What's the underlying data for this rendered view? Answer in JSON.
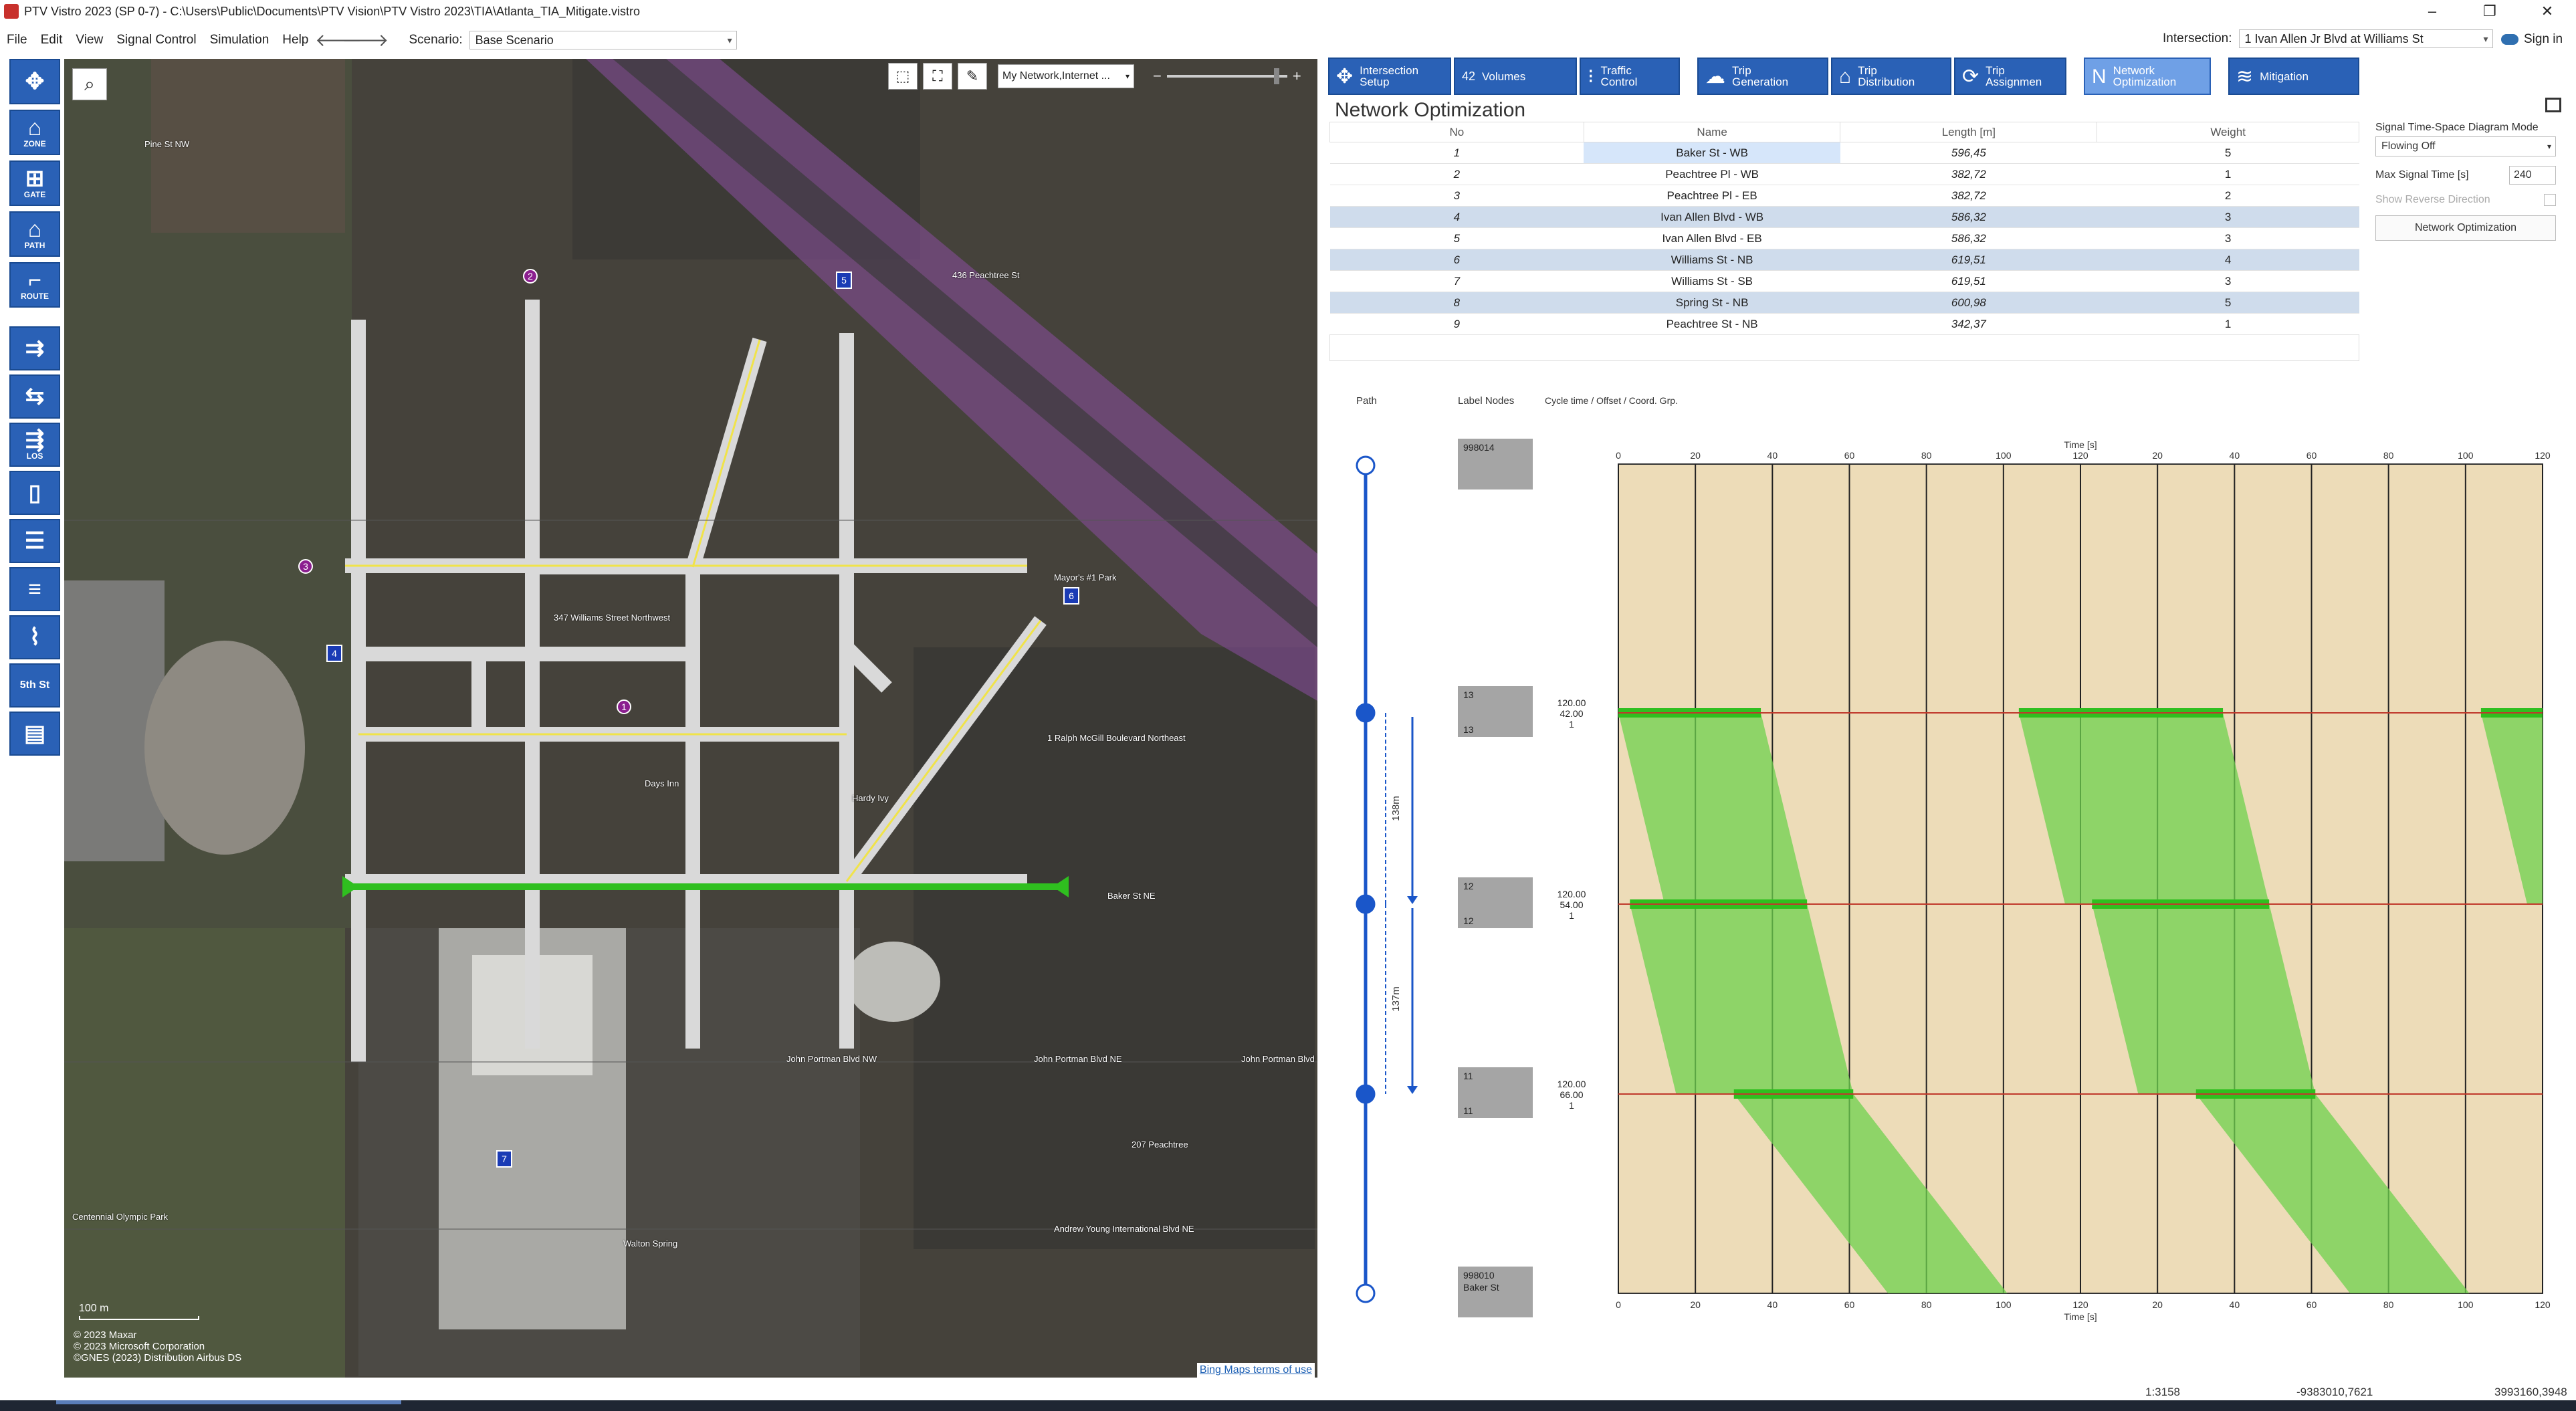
{
  "window": {
    "title": "PTV Vistro 2023 (SP 0-7) -  C:\\Users\\Public\\Documents\\PTV Vision\\PTV Vistro 2023\\TIA\\Atlanta_TIA_Mitigate.vistro",
    "controls": [
      "–",
      "❐",
      "✕"
    ]
  },
  "menu": {
    "items": [
      "File",
      "Edit",
      "View",
      "Signal Control",
      "Simulation",
      "Help"
    ],
    "scenario_label": "Scenario:",
    "scenario_value": "Base Scenario",
    "intersection_label": "Intersection:",
    "intersection_value": "1 Ivan Allen Jr Blvd at Williams St",
    "sign_in": "Sign in"
  },
  "left_toolbar": [
    {
      "icon": "intersection-icon",
      "glyph": "✥",
      "label": ""
    },
    {
      "icon": "zone-icon",
      "glyph": "⌂",
      "label": "ZONE"
    },
    {
      "icon": "gate-icon",
      "glyph": "⊞",
      "label": "GATE"
    },
    {
      "icon": "path-icon",
      "glyph": "⌂",
      "label": "PATH"
    },
    {
      "icon": "route-icon",
      "glyph": "⌐",
      "label": "ROUTE"
    }
  ],
  "left_toolbar_2": [
    {
      "icon": "turn-t-icon",
      "glyph": "⇉",
      "label": ""
    },
    {
      "icon": "turn-v-icon",
      "glyph": "⇆",
      "label": ""
    },
    {
      "icon": "los-icon",
      "glyph": "⇶",
      "label": "LOS"
    },
    {
      "icon": "lane-1-icon",
      "glyph": "▯",
      "label": ""
    },
    {
      "icon": "lane-grid-icon",
      "glyph": "☰",
      "label": ""
    },
    {
      "icon": "detector-icon",
      "glyph": "≡",
      "label": ""
    },
    {
      "icon": "curve-icon",
      "glyph": "⌇",
      "label": ""
    },
    {
      "icon": "street-name-icon",
      "glyph": "",
      "label": "5th St"
    },
    {
      "icon": "report-icon",
      "glyph": "▤",
      "label": ""
    }
  ],
  "map": {
    "layer_value": "My Network,Internet ...",
    "scale_label": "100 m",
    "attribution": [
      "© 2023 Maxar",
      "© 2023 Microsoft Corporation",
      "©GNES (2023) Distribution Airbus DS"
    ],
    "bing_terms": "Bing Maps terms of use",
    "labels": {
      "pine_st": "Pine St NW",
      "baker_st": "Baker St NE",
      "portman_1": "John Portman Blvd NW",
      "portman_2": "John Portman Blvd NE",
      "portman_3": "John Portman Blvd NE",
      "andrew_young": "Andrew Young International Blvd NE",
      "ralph": "1 Ralph McGill Boulevard Northeast",
      "peachtree_207": "207 Peachtree",
      "peachtree_436": "436 Peachtree St",
      "mayors_park": "Mayor's #1 Park",
      "williams_347": "347 Williams Street Northwest",
      "days_inn": "Days Inn",
      "hardy": "Hardy Ivy",
      "walton": "Walton Spring",
      "centennial": "Centennial Olympic Park"
    },
    "markers": [
      "1",
      "2",
      "3"
    ],
    "square_markers": [
      "4",
      "5",
      "6",
      "7"
    ]
  },
  "tabs": [
    {
      "label1": "Intersection",
      "label2": "Setup",
      "icon": "intersection-setup-icon",
      "glyph": "✥"
    },
    {
      "label1": "Volumes",
      "label2": "",
      "icon": "volumes-icon",
      "glyph": "42"
    },
    {
      "label1": "Traffic",
      "label2": "Control",
      "icon": "traffic-control-icon",
      "glyph": "⁝"
    },
    {
      "label1": "Trip",
      "label2": "Generation",
      "icon": "trip-generation-icon",
      "glyph": "☁"
    },
    {
      "label1": "Trip",
      "label2": "Distribution",
      "icon": "trip-distribution-icon",
      "glyph": "⌂"
    },
    {
      "label1": "Trip",
      "label2": "Assignmen",
      "icon": "trip-assignment-icon",
      "glyph": "⟳"
    },
    {
      "label1": "Network",
      "label2": "Optimization",
      "icon": "network-optimization-icon",
      "glyph": "N"
    },
    {
      "label1": "Mitigation",
      "label2": "",
      "icon": "mitigation-icon",
      "glyph": "≋"
    }
  ],
  "panel": {
    "title": "Network Optimization",
    "columns": [
      "No",
      "Name",
      "Length [m]",
      "Weight"
    ],
    "rows": [
      {
        "no": "1",
        "name": "Baker St - WB",
        "length": "596,45",
        "weight": "5"
      },
      {
        "no": "2",
        "name": "Peachtree Pl - WB",
        "length": "382,72",
        "weight": "1"
      },
      {
        "no": "3",
        "name": "Peachtree Pl - EB",
        "length": "382,72",
        "weight": "2"
      },
      {
        "no": "4",
        "name": "Ivan Allen Blvd - WB",
        "length": "586,32",
        "weight": "3"
      },
      {
        "no": "5",
        "name": "Ivan Allen Blvd - EB",
        "length": "586,32",
        "weight": "3"
      },
      {
        "no": "6",
        "name": "Williams St - NB",
        "length": "619,51",
        "weight": "4"
      },
      {
        "no": "7",
        "name": "Williams St - SB",
        "length": "619,51",
        "weight": "3"
      },
      {
        "no": "8",
        "name": "Spring St - NB",
        "length": "600,98",
        "weight": "5"
      },
      {
        "no": "9",
        "name": "Peachtree St - NB",
        "length": "342,37",
        "weight": "1"
      }
    ],
    "side": {
      "mode_label": "Signal Time-Space Diagram Mode",
      "mode_value": "Flowing Off",
      "max_time_label": "Max Signal Time [s]",
      "max_time_value": "240",
      "reverse_label": "Show Reverse Direction",
      "button": "Network Optimization"
    }
  },
  "chart_data": {
    "type": "time-space-diagram",
    "header_path": "Path",
    "header_label": "Label Nodes",
    "header_cycle": "Cycle time / Offset / Coord. Grp.",
    "x_title": "Time [s]",
    "x_ticks": [
      "0",
      "20",
      "40",
      "60",
      "80",
      "100",
      "120",
      "20",
      "40",
      "60",
      "80",
      "100",
      "120"
    ],
    "x_range": [
      0,
      240
    ],
    "nodes": [
      {
        "label": "998014",
        "label2": "",
        "cycle": "",
        "offset": "",
        "group": ""
      },
      {
        "label": "13",
        "label2": "13",
        "cycle": "120.00",
        "offset": "42.00",
        "group": "1"
      },
      {
        "label": "12",
        "label2": "12",
        "cycle": "120.00",
        "offset": "54.00",
        "group": "1"
      },
      {
        "label": "11",
        "label2": "11",
        "cycle": "120.00",
        "offset": "66.00",
        "group": "1"
      },
      {
        "label": "998010",
        "label2": "Baker St",
        "cycle": "",
        "offset": "",
        "group": ""
      }
    ],
    "distances": [
      "138m",
      "137m"
    ],
    "green_bands": [
      {
        "node": "13",
        "starts": [
          0,
          104,
          224
        ],
        "ends": [
          37,
          157,
          240
        ]
      },
      {
        "node": "12",
        "starts": [
          3,
          123
        ],
        "ends": [
          49,
          169
        ]
      },
      {
        "node": "11",
        "starts": [
          30,
          150
        ],
        "ends": [
          61,
          181
        ]
      }
    ],
    "colors": {
      "background": "#eddcb8",
      "band": "#6ed14e",
      "green_bar": "#2fbf1f",
      "node_line": "#c0392b",
      "path": "#1a56c9"
    }
  },
  "status": {
    "scale": "1:3158",
    "coord1": "-9383010,7621",
    "coord2": "3993160,3948"
  }
}
